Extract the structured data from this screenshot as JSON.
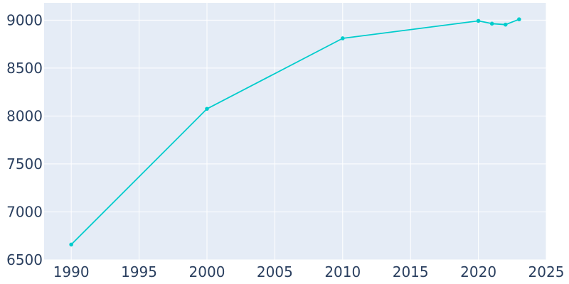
{
  "chart_data": {
    "type": "line",
    "title": "",
    "xlabel": "",
    "ylabel": "",
    "xlim": [
      1988,
      2025
    ],
    "ylim": [
      6500,
      9180
    ],
    "x_ticks": [
      1990,
      1995,
      2000,
      2005,
      2010,
      2015,
      2020,
      2025
    ],
    "y_ticks": [
      6500,
      7000,
      7500,
      8000,
      8500,
      9000
    ],
    "x_tick_labels": [
      "1990",
      "1995",
      "2000",
      "2005",
      "2010",
      "2015",
      "2020",
      "2025"
    ],
    "y_tick_labels": [
      "6500",
      "7000",
      "7500",
      "8000",
      "8500",
      "9000"
    ],
    "grid": true,
    "series": [
      {
        "color": "#00cccc",
        "x": [
          1990,
          2000,
          2010,
          2020,
          2021,
          2022,
          2023
        ],
        "y": [
          6660,
          8075,
          8810,
          8992,
          8963,
          8953,
          9008
        ]
      }
    ]
  },
  "colors": {
    "plot_background": "#e5ecf6",
    "grid": "#ffffff",
    "tick_text": "#2a3f5f"
  }
}
